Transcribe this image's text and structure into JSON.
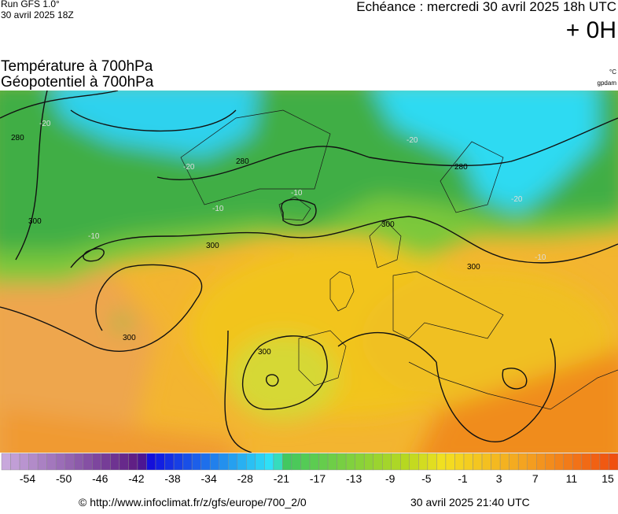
{
  "header": {
    "run": "Run GFS 1.0°",
    "run_date": "30 avril 2025 18Z",
    "forecast": "Echéance : mercredi 30 avril 2025 18h UTC",
    "offset": "+ 0H"
  },
  "titles": [
    "Température à 700hPa",
    "Géopotentiel à 700hPa"
  ],
  "units": [
    "°C",
    "gpdam"
  ],
  "map": {
    "contour_labels": [
      "280",
      "280",
      "280",
      "300",
      "300",
      "300",
      "300",
      "300",
      "300",
      "-20",
      "-20",
      "-20",
      "-20",
      "-10",
      "-10",
      "-10",
      "-10"
    ]
  },
  "colorbar": {
    "labels": [
      "-54",
      "-50",
      "-46",
      "-42",
      "-38",
      "-34",
      "-28",
      "-21",
      "-17",
      "-13",
      "-9",
      "-5",
      "-1",
      "3",
      "7",
      "11",
      "15"
    ]
  },
  "footer": {
    "source": "© http://www.infoclimat.fr/z/gfs/europe/700_2/0",
    "timestamp": "30 avril 2025 21:40 UTC"
  }
}
